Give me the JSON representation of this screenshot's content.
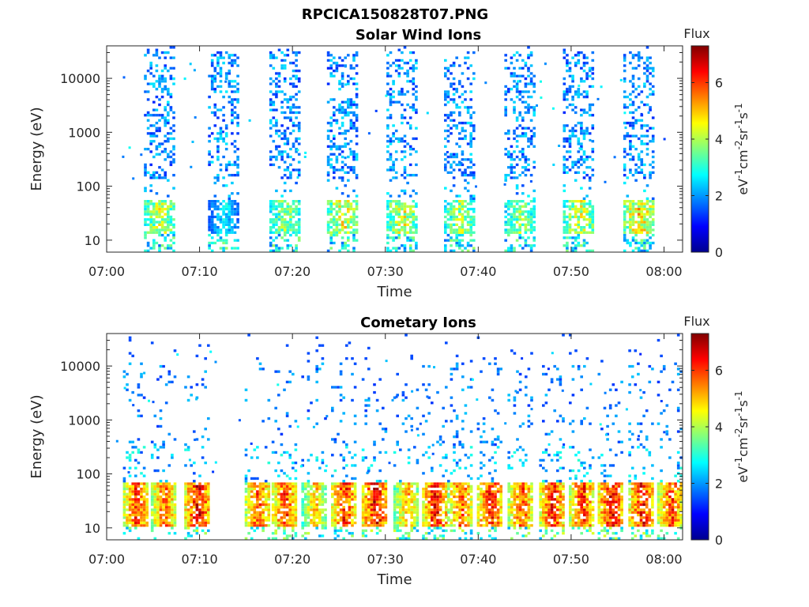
{
  "figure_title": "RPCICA150828T07.PNG",
  "chart_data": [
    {
      "type": "heatmap",
      "title": "Solar Wind Ions",
      "xlabel": "Time",
      "ylabel": "Energy (eV)",
      "yscale": "log",
      "ylim": [
        6,
        40000
      ],
      "xlim": [
        "07:00",
        "08:02"
      ],
      "xticks": [
        "07:00",
        "07:10",
        "07:20",
        "07:30",
        "07:40",
        "07:50",
        "08:00"
      ],
      "yticks": [
        "10",
        "100",
        "1000",
        "10000"
      ],
      "colorbar": {
        "label": "eV-1cm-2sr-1s-1",
        "title": "Flux",
        "range": [
          0,
          7.3
        ],
        "ticks": [
          "0",
          "2",
          "4",
          "6"
        ],
        "colormap": "jet"
      },
      "grid": false,
      "bursts": [
        {
          "time_min": 5.8,
          "low_energy_peak_flux": 4.5
        },
        {
          "time_min": 12.7,
          "low_energy_peak_flux": 2.5
        },
        {
          "time_min": 19.3,
          "low_energy_peak_flux": 4.0
        },
        {
          "time_min": 25.5,
          "low_energy_peak_flux": 4.8
        },
        {
          "time_min": 31.9,
          "low_energy_peak_flux": 4.6
        },
        {
          "time_min": 38.1,
          "low_energy_peak_flux": 4.2
        },
        {
          "time_min": 44.6,
          "low_energy_peak_flux": 4.0
        },
        {
          "time_min": 50.9,
          "low_energy_peak_flux": 4.6
        },
        {
          "time_min": 57.4,
          "low_energy_peak_flux": 5.2
        }
      ]
    },
    {
      "type": "heatmap",
      "title": "Cometary Ions",
      "xlabel": "Time",
      "ylabel": "Energy (eV)",
      "yscale": "log",
      "ylim": [
        6,
        40000
      ],
      "xlim": [
        "07:00",
        "08:02"
      ],
      "xticks": [
        "07:00",
        "07:10",
        "07:20",
        "07:30",
        "07:40",
        "07:50",
        "08:00"
      ],
      "yticks": [
        "10",
        "100",
        "1000",
        "10000"
      ],
      "colorbar": {
        "label": "eV-1cm-2sr-1s-1",
        "title": "Flux",
        "range": [
          0,
          7.3
        ],
        "ticks": [
          "0",
          "2",
          "4",
          "6"
        ],
        "colormap": "jet"
      },
      "grid": false,
      "bursts": [
        {
          "time_min": 3.2,
          "low_energy_peak_flux": 6.3
        },
        {
          "time_min": 6.2,
          "low_energy_peak_flux": 6.0
        },
        {
          "time_min": 9.8,
          "low_energy_peak_flux": 6.8
        },
        {
          "time_min": 16.3,
          "low_energy_peak_flux": 6.2
        },
        {
          "time_min": 19.2,
          "low_energy_peak_flux": 6.4
        },
        {
          "time_min": 22.4,
          "low_energy_peak_flux": 5.2
        },
        {
          "time_min": 25.6,
          "low_energy_peak_flux": 6.5
        },
        {
          "time_min": 28.9,
          "low_energy_peak_flux": 6.9
        },
        {
          "time_min": 32.3,
          "low_energy_peak_flux": 5.4
        },
        {
          "time_min": 35.4,
          "low_energy_peak_flux": 6.7
        },
        {
          "time_min": 38.1,
          "low_energy_peak_flux": 6.1
        },
        {
          "time_min": 41.3,
          "low_energy_peak_flux": 6.6
        },
        {
          "time_min": 44.6,
          "low_energy_peak_flux": 6.2
        },
        {
          "time_min": 48.0,
          "low_energy_peak_flux": 6.5
        },
        {
          "time_min": 51.2,
          "low_energy_peak_flux": 6.4
        },
        {
          "time_min": 54.3,
          "low_energy_peak_flux": 6.8
        },
        {
          "time_min": 57.6,
          "low_energy_peak_flux": 6.7
        },
        {
          "time_min": 60.7,
          "low_energy_peak_flux": 6.3
        }
      ]
    }
  ]
}
